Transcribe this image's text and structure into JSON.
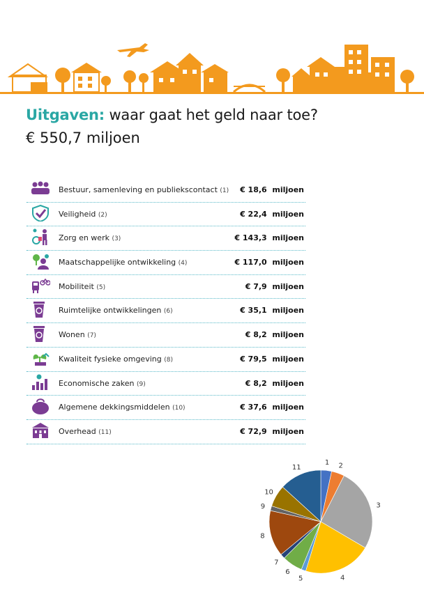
{
  "header": {
    "title_accent": "Uitgaven:",
    "title_rest": " waar gaat het geld naar toe?",
    "total": "€ 550,7 miljoen"
  },
  "colors": {
    "accent": "#2aa7a4",
    "skyline": "#f39a1e",
    "icons": "#7b3c93",
    "divider": "#58b9c8"
  },
  "items": [
    {
      "label": "Bestuur, samenleving en publiekscontact",
      "num": "(1)",
      "amount": "€ 18,6",
      "unit": "miljoen",
      "icon": "people-meeting-icon"
    },
    {
      "label": "Veiligheid",
      "num": "(2)",
      "amount": "€ 22,4",
      "unit": "miljoen",
      "icon": "shield-check-icon"
    },
    {
      "label": "Zorg en werk",
      "num": "(3)",
      "amount": "€ 143,3",
      "unit": "miljoen",
      "icon": "wheelchair-worker-icon"
    },
    {
      "label": "Maatschappelijke ontwikkeling",
      "num": "(4)",
      "amount": "€ 117,0",
      "unit": "miljoen",
      "icon": "people-tree-icon"
    },
    {
      "label": "Mobiliteit",
      "num": "(5)",
      "amount": "€ 7,9",
      "unit": "miljoen",
      "icon": "train-bike-icon"
    },
    {
      "label": "Ruimtelijke ontwikkelingen",
      "num": "(6)",
      "amount": "€ 35,1",
      "unit": "miljoen",
      "icon": "recycle-bin-icon"
    },
    {
      "label": "Wonen",
      "num": "(7)",
      "amount": "€ 8,2",
      "unit": "miljoen",
      "icon": "recycle-bin-icon"
    },
    {
      "label": "Kwaliteit fysieke omgeving",
      "num": "(8)",
      "amount": "€ 79,5",
      "unit": "miljoen",
      "icon": "plant-house-icon"
    },
    {
      "label": "Economische zaken",
      "num": "(9)",
      "amount": "€ 8,2",
      "unit": "miljoen",
      "icon": "bar-chart-icon"
    },
    {
      "label": "Algemene dekkingsmiddelen",
      "num": "(10)",
      "amount": "€ 37,6",
      "unit": "miljoen",
      "icon": "purse-icon"
    },
    {
      "label": "Overhead",
      "num": "(11)",
      "amount": "€ 72,9",
      "unit": "miljoen",
      "icon": "townhall-icon"
    }
  ],
  "chart_data": {
    "type": "pie",
    "categories": [
      "1",
      "2",
      "3",
      "4",
      "5",
      "6",
      "7",
      "8",
      "9",
      "10",
      "11"
    ],
    "values": [
      18.6,
      22.4,
      143.3,
      117.0,
      7.9,
      35.1,
      8.2,
      79.5,
      8.2,
      37.6,
      72.9
    ],
    "colors": [
      "#4472c4",
      "#ed7d31",
      "#a5a5a5",
      "#ffc000",
      "#5b9bd5",
      "#70ad47",
      "#264478",
      "#9e480e",
      "#636363",
      "#997300",
      "#255e91"
    ],
    "title": "",
    "xlabel": "",
    "ylabel": ""
  }
}
